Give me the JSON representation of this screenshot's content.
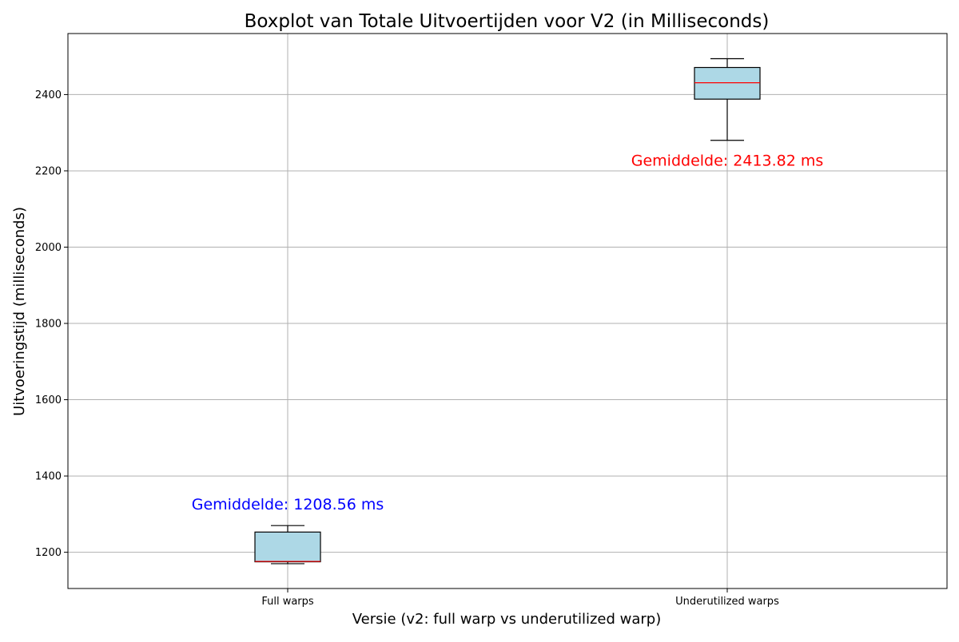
{
  "chart_data": {
    "type": "boxplot",
    "title": "Boxplot van Totale Uitvoertijden voor V2 (in Milliseconds)",
    "xlabel": "Versie (v2: full warp vs underutilized warp)",
    "ylabel": "Uitvoeringstijd (milliseconds)",
    "ylim": [
      1105,
      2560
    ],
    "yticks": [
      1200,
      1400,
      1600,
      1800,
      2000,
      2200,
      2400
    ],
    "grid": true,
    "categories": [
      "Full warps",
      "Underutilized warps"
    ],
    "boxes": [
      {
        "category": "Full warps",
        "whisker_low": 1170,
        "q1": 1175,
        "median": 1176,
        "q3": 1253,
        "whisker_high": 1270,
        "mean": 1208.56,
        "annotation": "Gemiddelde: 1208.56 ms",
        "annotation_color": "#0000ff"
      },
      {
        "category": "Underutilized warps",
        "whisker_low": 2280,
        "q1": 2388,
        "median": 2431,
        "q3": 2471,
        "whisker_high": 2494,
        "mean": 2413.82,
        "annotation": "Gemiddelde: 2413.82 ms",
        "annotation_color": "#ff0000"
      }
    ],
    "box_fill_color": "#add8e6",
    "median_color": "#ff0000",
    "grid_color": "#b0b0b0"
  }
}
